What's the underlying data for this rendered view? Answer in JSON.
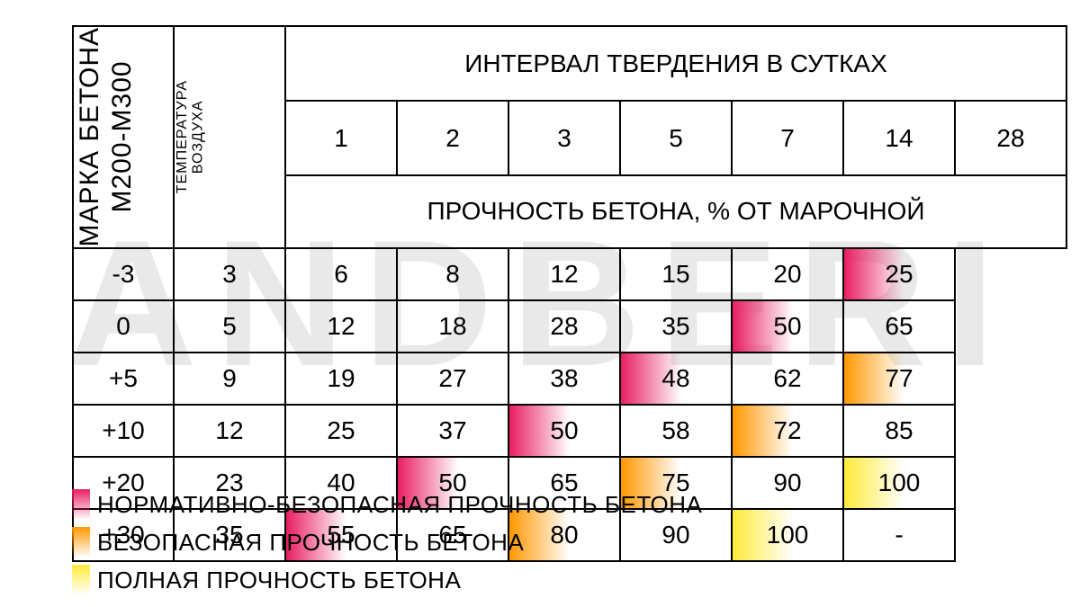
{
  "watermark_text": "ANDBERI",
  "left_header_main": "МАРКА БЕТОНА\nM200-M300",
  "left_header_sub": "ТЕМПЕРАТУРА\nВОЗДУХА",
  "top_header": "ИНТЕРВАЛ ТВЕРДЕНИЯ В СУТКАХ",
  "days": [
    "1",
    "2",
    "3",
    "5",
    "7",
    "14",
    "28"
  ],
  "mid_header": "ПРОЧНОСТЬ БЕТОНА, % ОТ МАРОЧНОЙ",
  "temperatures": [
    "-3",
    "0",
    "+5",
    "+10",
    "+20",
    "+30"
  ],
  "grid": [
    [
      "3",
      "6",
      "8",
      "12",
      "15",
      "20",
      "25"
    ],
    [
      "5",
      "12",
      "18",
      "28",
      "35",
      "50",
      "65"
    ],
    [
      "9",
      "19",
      "27",
      "38",
      "48",
      "62",
      "77"
    ],
    [
      "12",
      "25",
      "37",
      "50",
      "58",
      "72",
      "85"
    ],
    [
      "23",
      "40",
      "50",
      "65",
      "75",
      "90",
      "100"
    ],
    [
      "35",
      "55",
      "65",
      "80",
      "90",
      "100",
      "-"
    ]
  ],
  "highlights": [
    [
      "",
      "",
      "",
      "",
      "",
      "",
      "pink"
    ],
    [
      "",
      "",
      "",
      "",
      "",
      "pink",
      ""
    ],
    [
      "",
      "",
      "",
      "",
      "pink",
      "",
      "orange"
    ],
    [
      "",
      "",
      "",
      "pink",
      "",
      "orange",
      ""
    ],
    [
      "",
      "",
      "pink",
      "",
      "orange",
      "",
      "yellow"
    ],
    [
      "",
      "pink",
      "",
      "orange",
      "",
      "yellow",
      ""
    ]
  ],
  "legend": [
    {
      "swatch": "pink",
      "text": "НОРМАТИВНО-БЕЗОПАСНАЯ ПРОЧНОСТЬ БЕТОНА"
    },
    {
      "swatch": "orange",
      "text": "БЕЗОПАСНАЯ ПРОЧНОСТЬ БЕТОНА"
    },
    {
      "swatch": "yellow",
      "text": "ПОЛНАЯ ПРОЧНОСТЬ БЕТОНА"
    }
  ],
  "colors": {
    "pink": "#e91e63",
    "orange": "#ff9800",
    "yellow": "#ffeb3b",
    "border": "#000000",
    "watermark": "#e9e9e9",
    "background": "#ffffff"
  },
  "font": {
    "family": "Arial",
    "cell_size_pt": 21,
    "header_size_pt": 20,
    "legend_size_pt": 20
  }
}
